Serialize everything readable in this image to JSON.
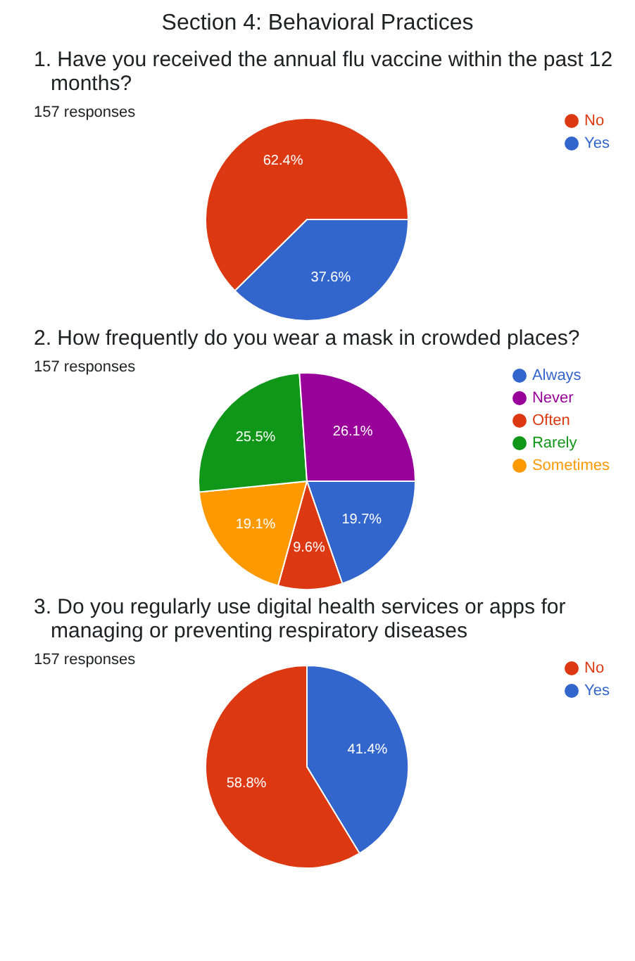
{
  "chart_data": [
    {
      "type": "pie",
      "title": "Section 4: Behavioral Practices",
      "subtitle": "1. Have you received the annual flu vaccine within the past 12 months?",
      "annotations": [
        "157 responses"
      ],
      "categories": [
        "Yes",
        "No"
      ],
      "values": [
        37.6,
        62.4
      ],
      "colors": [
        "#3366cc",
        "#dc3912"
      ],
      "value_labels": [
        "37.6%",
        "62.4%"
      ],
      "legend": "top right"
    },
    {
      "type": "pie",
      "title": "2. How frequently do you wear a mask in crowded places?",
      "annotations": [
        "157 responses"
      ],
      "categories": [
        "Always",
        "Often",
        "Sometimes",
        "Rarely",
        "Never"
      ],
      "values": [
        19.7,
        9.6,
        19.1,
        25.5,
        26.1
      ],
      "colors": [
        "#3366cc",
        "#dc3912",
        "#ff9900",
        "#109618",
        "#990099"
      ],
      "value_labels": [
        "19.7%",
        "9.6%",
        "19.1%",
        "25.5%",
        "26.1%"
      ],
      "legend": "top right"
    },
    {
      "type": "pie",
      "title": "3. Do you regularly use digital health services or apps for managing or preventing respiratory diseases",
      "annotations": [
        "157 responses"
      ],
      "categories": [
        "Yes",
        "No"
      ],
      "values": [
        41.4,
        58.8
      ],
      "colors": [
        "#3366cc",
        "#dc3912"
      ],
      "value_labels": [
        "41.4%",
        "58.8%"
      ],
      "legend": "top right"
    }
  ]
}
